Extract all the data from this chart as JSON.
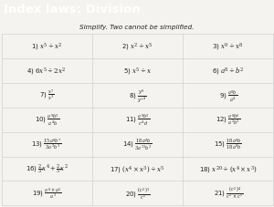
{
  "title": "Index laws: Division",
  "subtitle": "Simplify. Two cannot be simplified.",
  "title_bg": "#1c1c1c",
  "title_color": "#ffffff",
  "body_bg": "#f5f3ef",
  "grid_color": "#c8c8c8",
  "text_color": "#222222",
  "rows": [
    [
      "1) $x^5 \\div x^2$",
      "2) $x^2 \\div x^5$",
      "3) $x^9 \\div x^8$"
    ],
    [
      "4) $6x^5 \\div 2x^2$",
      "5) $x^5 \\div x$",
      "6) $a^8 \\div b^2$"
    ],
    [
      "7) $\\frac{x^7}{x^3}$",
      "8) $\\frac{y^9}{y^{-4}}$",
      "9) $\\frac{a^8b}{a^4}$"
    ],
    [
      "10) $\\frac{a^9b^3}{a^4b}$",
      "11) $\\frac{a^9b^3}{c^4d}$",
      "12) $\\frac{a^8b^6}{a^2b^3}$"
    ],
    [
      "13) $\\frac{15a^8b^7}{3a^3b^3}$",
      "14) $\\frac{18a^8b}{3a^{13}b^3}$",
      "15) $\\frac{18a^8b}{18a^8b}$"
    ],
    [
      "16) $\\frac{2}{3}x^4 + \\frac{2}{5}x^2$",
      "17) $(x^4 \\times x^3) \\div x^5$",
      "18) $x^{20} \\div (x^4 \\times x^3)$"
    ],
    [
      "19) $\\frac{a^8 \\times a^2}{a^3}$",
      "20) $\\frac{(c^2)^3}{c^5}$",
      "21) $\\frac{(c^2)^4}{c^2 \\times c^5}$"
    ]
  ],
  "num_cols": 3,
  "num_rows": 7,
  "title_fontsize": 9.5,
  "subtitle_fontsize": 5.2,
  "cell_fontsize": 5.0,
  "figsize": [
    3.0,
    2.28
  ],
  "dpi": 100
}
